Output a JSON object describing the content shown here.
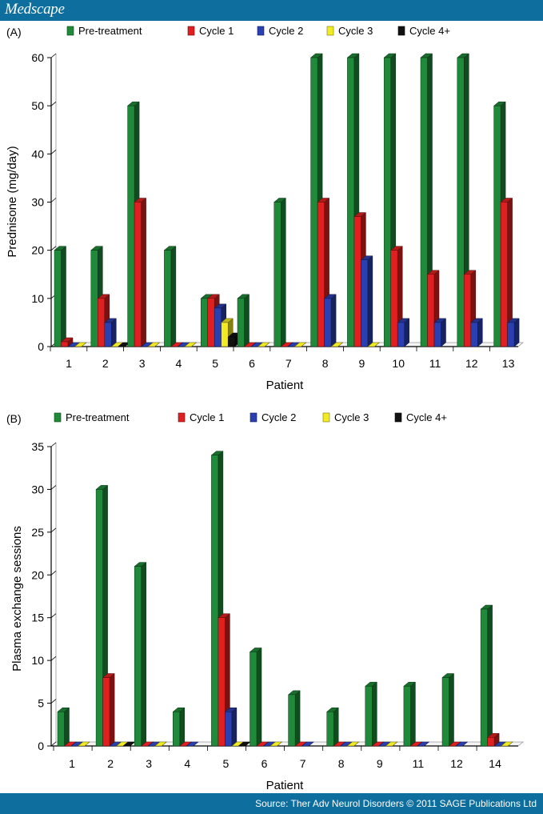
{
  "header": {
    "brand": "Medscape"
  },
  "footer": {
    "source": "Source: Ther Adv Neurol Disorders © 2011 SAGE Publications Ltd"
  },
  "colors": {
    "Pre-treatment": "#1f8a3a",
    "Cycle 1": "#e02020",
    "Cycle 2": "#2a3fb0",
    "Cycle 3": "#f2ea22",
    "Cycle 4+": "#111111"
  },
  "chart_data": [
    {
      "panel_label": "(A)",
      "type": "bar",
      "title": "",
      "xlabel": "Patient",
      "ylabel": "Prednisone (mg/day)",
      "ylim": [
        0,
        60
      ],
      "yticks": [
        0,
        10,
        20,
        30,
        40,
        50,
        60
      ],
      "legend_position": "top",
      "categories": [
        "1",
        "2",
        "3",
        "4",
        "5",
        "6",
        "7",
        "8",
        "9",
        "10",
        "11",
        "12",
        "13"
      ],
      "series": [
        {
          "name": "Pre-treatment",
          "values": [
            20,
            20,
            50,
            20,
            10,
            10,
            30,
            60,
            60,
            60,
            60,
            60,
            50
          ]
        },
        {
          "name": "Cycle 1",
          "values": [
            1,
            10,
            30,
            0,
            10,
            0,
            0,
            30,
            27,
            20,
            15,
            15,
            30
          ]
        },
        {
          "name": "Cycle 2",
          "values": [
            0,
            5,
            0,
            0,
            8,
            0,
            0,
            10,
            18,
            5,
            5,
            5,
            5
          ]
        },
        {
          "name": "Cycle 3",
          "values": [
            0,
            0,
            0,
            0,
            5,
            0,
            0,
            0,
            0,
            null,
            null,
            null,
            null
          ]
        },
        {
          "name": "Cycle 4+",
          "values": [
            null,
            0,
            null,
            null,
            2,
            null,
            null,
            null,
            null,
            null,
            null,
            null,
            null
          ]
        }
      ]
    },
    {
      "panel_label": "(B)",
      "type": "bar",
      "title": "",
      "xlabel": "Patient",
      "ylabel": "Plasma exchange sessions",
      "ylim": [
        0,
        35
      ],
      "yticks": [
        0,
        5,
        10,
        15,
        20,
        25,
        30,
        35
      ],
      "legend_position": "top",
      "categories": [
        "1",
        "2",
        "3",
        "4",
        "5",
        "6",
        "7",
        "8",
        "9",
        "11",
        "12",
        "14"
      ],
      "series": [
        {
          "name": "Pre-treatment",
          "values": [
            4,
            30,
            21,
            4,
            34,
            11,
            6,
            4,
            7,
            7,
            8,
            16
          ]
        },
        {
          "name": "Cycle 1",
          "values": [
            0,
            8,
            0,
            0,
            15,
            0,
            0,
            0,
            0,
            0,
            0,
            1
          ]
        },
        {
          "name": "Cycle 2",
          "values": [
            0,
            0,
            0,
            0,
            4,
            0,
            0,
            0,
            0,
            0,
            0,
            0
          ]
        },
        {
          "name": "Cycle 3",
          "values": [
            0,
            0,
            0,
            null,
            0,
            0,
            null,
            0,
            0,
            null,
            null,
            0
          ]
        },
        {
          "name": "Cycle 4+",
          "values": [
            null,
            0,
            null,
            null,
            0,
            null,
            null,
            null,
            null,
            null,
            null,
            null
          ]
        }
      ]
    }
  ]
}
